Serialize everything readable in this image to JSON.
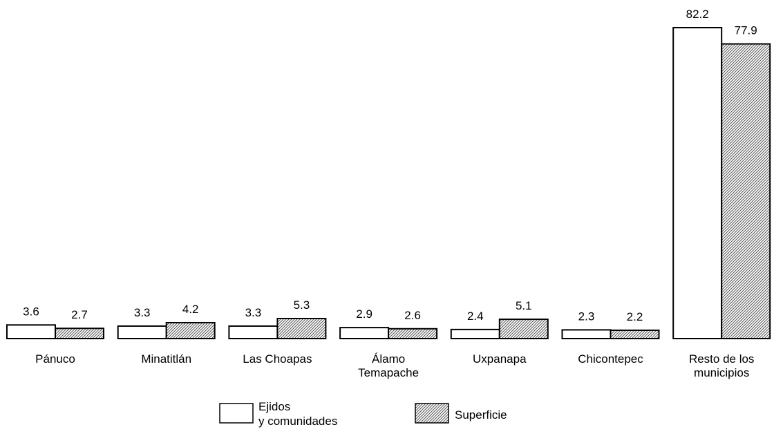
{
  "chart_data": {
    "type": "bar",
    "categories": [
      [
        "Pánuco"
      ],
      [
        "Minatitlán"
      ],
      [
        "Las Choapas"
      ],
      [
        "Álamo",
        "Temapache"
      ],
      [
        "Uxpanapa"
      ],
      [
        "Chicontepec"
      ],
      [
        "Resto de los",
        "municipios"
      ]
    ],
    "series": [
      {
        "name": [
          "Ejidos",
          "y comunidades"
        ],
        "values": [
          3.6,
          3.3,
          3.3,
          2.9,
          2.4,
          2.3,
          82.2
        ],
        "fill": "#ffffff",
        "pattern": "none"
      },
      {
        "name": [
          "Superficie"
        ],
        "values": [
          2.7,
          4.2,
          5.3,
          2.6,
          5.1,
          2.2,
          77.9
        ],
        "fill": "#ffffff",
        "pattern": "diagonal-hatch"
      }
    ],
    "ylim": [
      0,
      82.2
    ],
    "grid": false,
    "axes_visible": false,
    "legend_position": "bottom-center",
    "colors": {
      "stroke": "#000000",
      "hatch": "#555555"
    }
  }
}
